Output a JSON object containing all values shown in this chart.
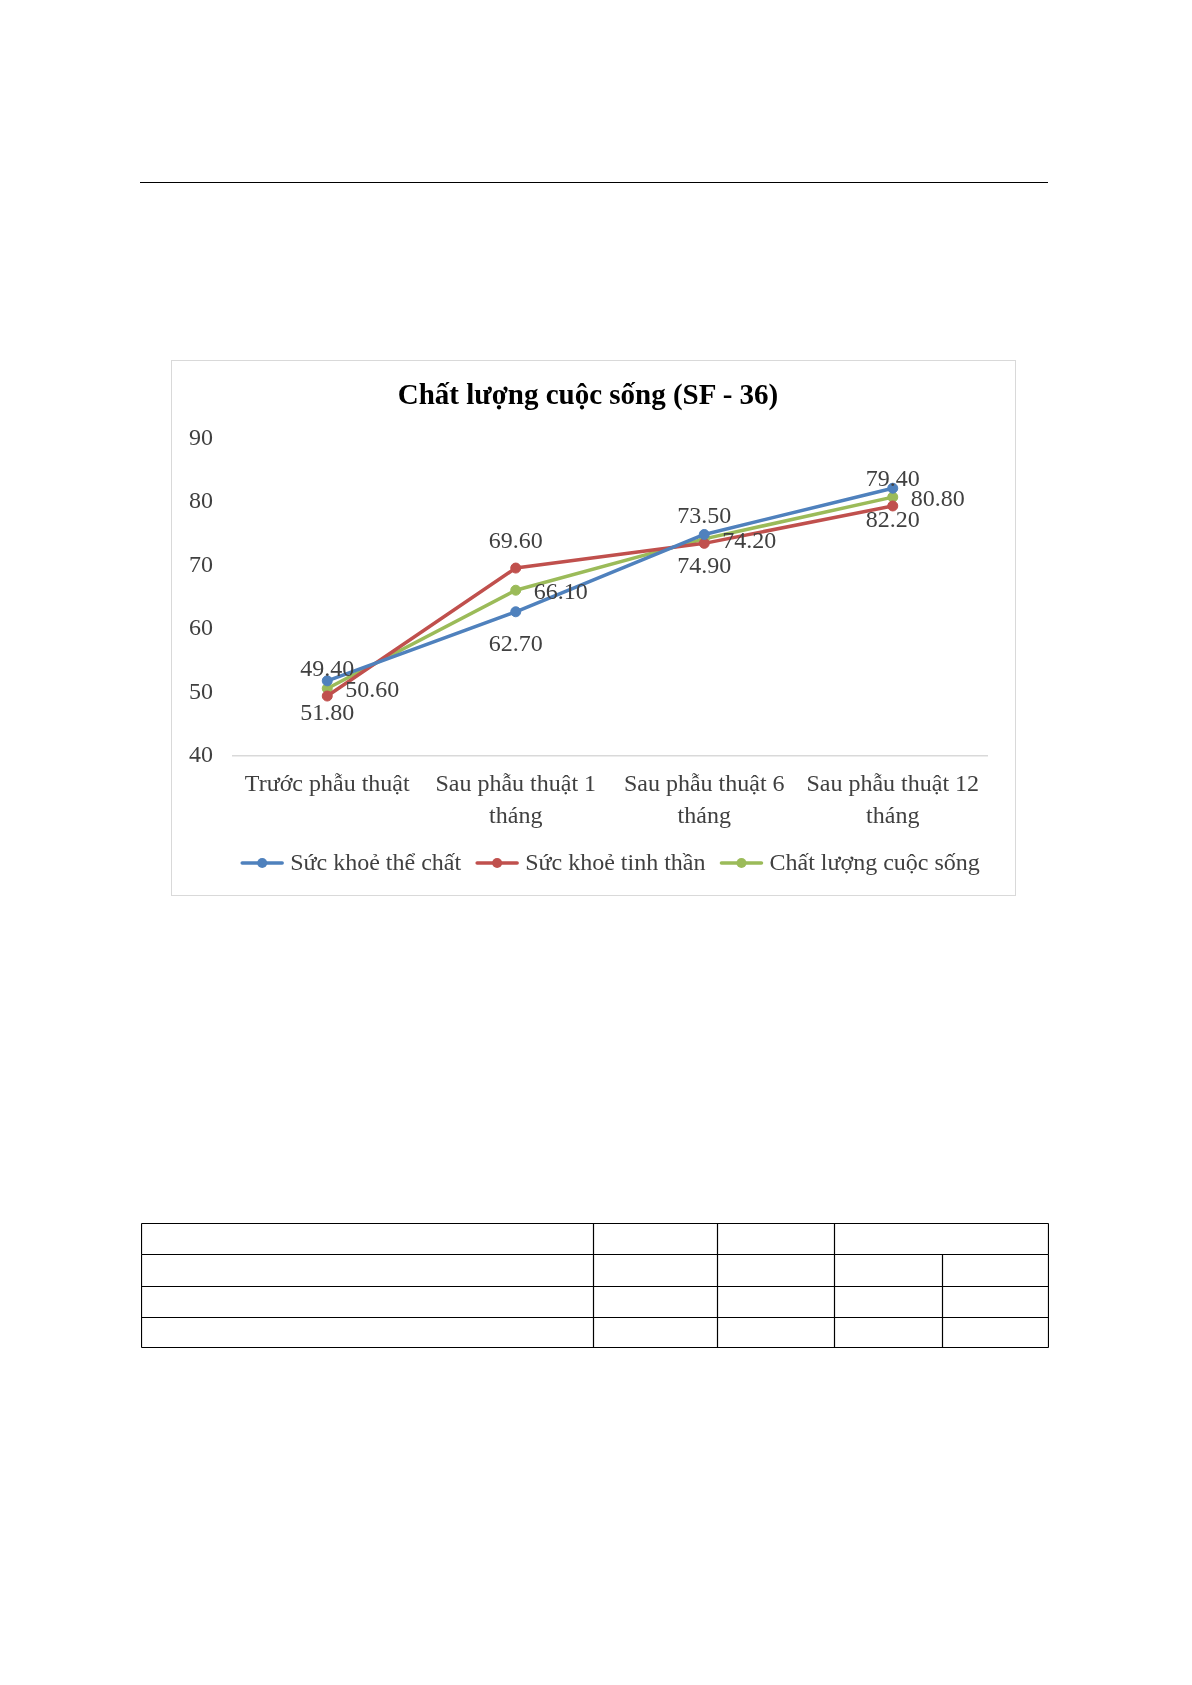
{
  "chart_data": {
    "type": "line",
    "title": "Chất lượng cuộc sống (SF - 36)",
    "categories": [
      "Trước phẫu thuật",
      "Sau phẫu thuật 1 tháng",
      "Sau phẫu thuật 6 tháng",
      "Sau phẫu thuật 12 tháng"
    ],
    "series": [
      {
        "name": "Sức khoẻ thể chất",
        "color": "#4f81bd",
        "values": [
          51.8,
          62.7,
          74.9,
          82.2
        ],
        "value_labels": [
          "51.80",
          "62.70",
          "74.90",
          "82.20"
        ]
      },
      {
        "name": "Sức khoẻ tinh thần",
        "color": "#c0504d",
        "values": [
          49.4,
          69.6,
          73.5,
          79.4
        ],
        "value_labels": [
          "49.40",
          "69.60",
          "73.50",
          "79.40"
        ]
      },
      {
        "name": "Chất lượng cuộc sống",
        "color": "#9bbb59",
        "values": [
          50.6,
          66.1,
          74.2,
          80.8
        ],
        "value_labels": [
          "50.60",
          "66.10",
          "74.20",
          "80.80"
        ]
      }
    ],
    "ylim": [
      40,
      90
    ],
    "yticks": [
      40,
      50,
      60,
      70,
      80,
      90
    ],
    "legend": "bottom",
    "marker": "circle",
    "line_style": "solid"
  }
}
